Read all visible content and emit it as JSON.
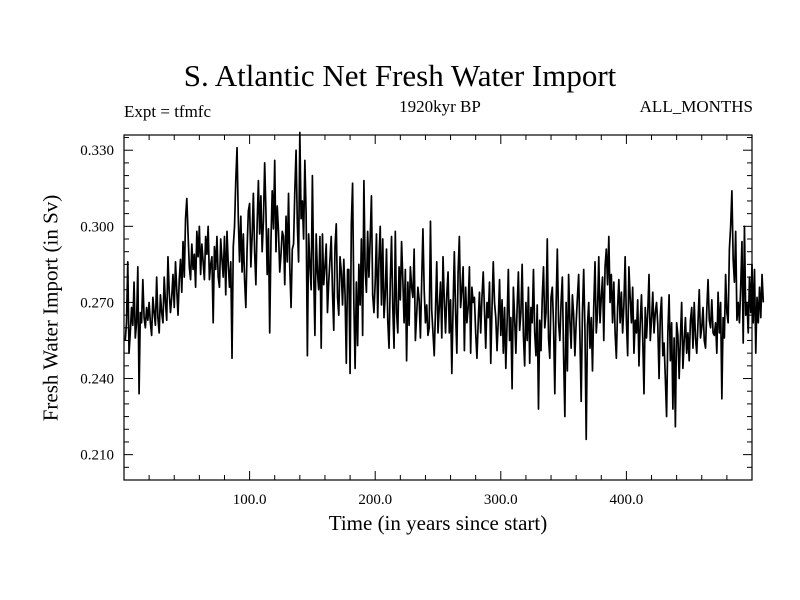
{
  "chart_data": {
    "type": "line",
    "title": "S. Atlantic Net Fresh Water Import",
    "subtitle_left": "Expt = tfmfc",
    "subtitle_center": "1920kyr BP",
    "subtitle_right": "ALL_MONTHS",
    "xlabel": "Time (in years since start)",
    "ylabel": "Fresh Water Import (in Sv)",
    "xlim": [
      0,
      500
    ],
    "ylim": [
      0.2,
      0.336
    ],
    "xticks": [
      100,
      200,
      300,
      400
    ],
    "xtick_labels": [
      "100.0",
      "200.0",
      "300.0",
      "400.0"
    ],
    "yticks": [
      0.21,
      0.24,
      0.27,
      0.3,
      0.33
    ],
    "ytick_labels": [
      "0.210",
      "0.240",
      "0.270",
      "0.300",
      "0.330"
    ],
    "grid": false,
    "series": [
      {
        "name": "Fresh Water Import",
        "x_start": 1,
        "x_step": 1,
        "values": [
          0.255,
          0.262,
          0.286,
          0.25,
          0.258,
          0.268,
          0.261,
          0.278,
          0.256,
          0.262,
          0.284,
          0.234,
          0.266,
          0.262,
          0.279,
          0.264,
          0.26,
          0.268,
          0.263,
          0.27,
          0.262,
          0.257,
          0.272,
          0.266,
          0.261,
          0.28,
          0.264,
          0.258,
          0.273,
          0.266,
          0.262,
          0.28,
          0.27,
          0.263,
          0.288,
          0.274,
          0.266,
          0.272,
          0.281,
          0.268,
          0.286,
          0.275,
          0.265,
          0.279,
          0.287,
          0.274,
          0.294,
          0.28,
          0.303,
          0.311,
          0.297,
          0.284,
          0.279,
          0.293,
          0.283,
          0.289,
          0.276,
          0.298,
          0.288,
          0.3,
          0.281,
          0.293,
          0.286,
          0.279,
          0.296,
          0.289,
          0.3,
          0.279,
          0.285,
          0.288,
          0.262,
          0.292,
          0.283,
          0.296,
          0.28,
          0.276,
          0.295,
          0.287,
          0.28,
          0.296,
          0.273,
          0.298,
          0.285,
          0.276,
          0.286,
          0.248,
          0.292,
          0.3,
          0.318,
          0.331,
          0.303,
          0.286,
          0.304,
          0.282,
          0.297,
          0.279,
          0.268,
          0.291,
          0.306,
          0.309,
          0.284,
          0.296,
          0.313,
          0.29,
          0.277,
          0.301,
          0.318,
          0.297,
          0.312,
          0.29,
          0.302,
          0.325,
          0.306,
          0.281,
          0.299,
          0.258,
          0.294,
          0.314,
          0.299,
          0.326,
          0.29,
          0.308,
          0.298,
          0.282,
          0.289,
          0.298,
          0.296,
          0.277,
          0.304,
          0.286,
          0.313,
          0.284,
          0.268,
          0.291,
          0.293,
          0.314,
          0.33,
          0.301,
          0.286,
          0.337,
          0.303,
          0.31,
          0.295,
          0.326,
          0.305,
          0.249,
          0.297,
          0.285,
          0.275,
          0.32,
          0.282,
          0.257,
          0.297,
          0.282,
          0.275,
          0.296,
          0.252,
          0.297,
          0.277,
          0.284,
          0.293,
          0.266,
          0.278,
          0.287,
          0.296,
          0.274,
          0.259,
          0.292,
          0.301,
          0.272,
          0.265,
          0.288,
          0.282,
          0.269,
          0.287,
          0.273,
          0.246,
          0.283,
          0.283,
          0.242,
          0.301,
          0.317,
          0.27,
          0.244,
          0.278,
          0.253,
          0.285,
          0.269,
          0.295,
          0.257,
          0.318,
          0.283,
          0.274,
          0.298,
          0.28,
          0.295,
          0.312,
          0.273,
          0.266,
          0.278,
          0.297,
          0.264,
          0.287,
          0.3,
          0.269,
          0.295,
          0.264,
          0.273,
          0.291,
          0.263,
          0.252,
          0.278,
          0.296,
          0.268,
          0.252,
          0.298,
          0.266,
          0.258,
          0.284,
          0.271,
          0.294,
          0.279,
          0.262,
          0.283,
          0.247,
          0.278,
          0.261,
          0.284,
          0.276,
          0.272,
          0.291,
          0.255,
          0.265,
          0.276,
          0.271,
          0.256,
          0.278,
          0.299,
          0.275,
          0.262,
          0.269,
          0.257,
          0.26,
          0.302,
          0.267,
          0.258,
          0.249,
          0.267,
          0.286,
          0.258,
          0.268,
          0.278,
          0.256,
          0.288,
          0.271,
          0.258,
          0.273,
          0.282,
          0.258,
          0.271,
          0.242,
          0.268,
          0.29,
          0.266,
          0.25,
          0.282,
          0.296,
          0.268,
          0.275,
          0.284,
          0.251,
          0.276,
          0.262,
          0.268,
          0.284,
          0.25,
          0.276,
          0.27,
          0.272,
          0.258,
          0.248,
          0.262,
          0.274,
          0.258,
          0.272,
          0.282,
          0.267,
          0.252,
          0.27,
          0.264,
          0.278,
          0.246,
          0.268,
          0.286,
          0.27,
          0.264,
          0.251,
          0.263,
          0.279,
          0.257,
          0.271,
          0.25,
          0.268,
          0.244,
          0.262,
          0.283,
          0.255,
          0.264,
          0.236,
          0.276,
          0.264,
          0.25,
          0.268,
          0.282,
          0.259,
          0.266,
          0.285,
          0.257,
          0.245,
          0.27,
          0.255,
          0.276,
          0.246,
          0.268,
          0.262,
          0.283,
          0.258,
          0.249,
          0.269,
          0.228,
          0.263,
          0.251,
          0.272,
          0.284,
          0.26,
          0.266,
          0.295,
          0.256,
          0.248,
          0.272,
          0.276,
          0.261,
          0.234,
          0.268,
          0.291,
          0.262,
          0.255,
          0.27,
          0.28,
          0.249,
          0.225,
          0.27,
          0.243,
          0.281,
          0.263,
          0.252,
          0.273,
          0.265,
          0.249,
          0.262,
          0.272,
          0.281,
          0.256,
          0.231,
          0.266,
          0.283,
          0.259,
          0.216,
          0.261,
          0.27,
          0.252,
          0.264,
          0.243,
          0.268,
          0.286,
          0.258,
          0.266,
          0.288,
          0.262,
          0.272,
          0.28,
          0.255,
          0.284,
          0.291,
          0.277,
          0.296,
          0.27,
          0.281,
          0.262,
          0.278,
          0.258,
          0.248,
          0.268,
          0.279,
          0.262,
          0.274,
          0.258,
          0.269,
          0.288,
          0.263,
          0.249,
          0.284,
          0.272,
          0.262,
          0.276,
          0.25,
          0.263,
          0.258,
          0.271,
          0.245,
          0.262,
          0.273,
          0.256,
          0.234,
          0.268,
          0.256,
          0.266,
          0.281,
          0.255,
          0.263,
          0.274,
          0.258,
          0.266,
          0.27,
          0.261,
          0.24,
          0.265,
          0.272,
          0.249,
          0.254,
          0.24,
          0.225,
          0.258,
          0.273,
          0.247,
          0.262,
          0.228,
          0.256,
          0.221,
          0.262,
          0.257,
          0.24,
          0.256,
          0.27,
          0.244,
          0.255,
          0.264,
          0.25,
          0.258,
          0.247,
          0.263,
          0.268,
          0.252,
          0.27,
          0.256,
          0.25,
          0.262,
          0.275,
          0.256,
          0.26,
          0.268,
          0.255,
          0.252,
          0.267,
          0.279,
          0.263,
          0.26,
          0.271,
          0.258,
          0.257,
          0.262,
          0.25,
          0.274,
          0.258,
          0.27,
          0.232,
          0.264,
          0.256,
          0.281,
          0.266,
          0.262,
          0.291,
          0.3,
          0.314,
          0.287,
          0.278,
          0.298,
          0.263,
          0.27,
          0.262,
          0.276,
          0.294,
          0.254,
          0.3,
          0.265,
          0.27,
          0.258,
          0.28,
          0.266,
          0.285,
          0.262,
          0.283,
          0.25,
          0.272,
          0.262,
          0.276,
          0.264,
          0.281,
          0.27
        ]
      }
    ]
  }
}
